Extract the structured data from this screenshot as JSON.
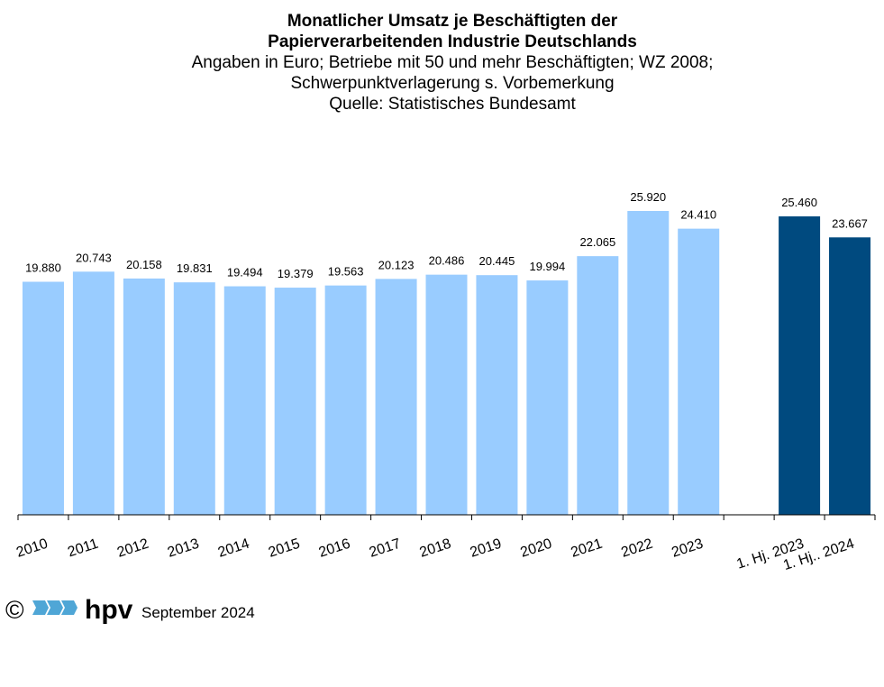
{
  "header": {
    "title_line1": "Monatlicher Umsatz je Beschäftigten der",
    "title_line2": "Papierverarbeitenden Industrie Deutschlands",
    "subtitle_line1": "Angaben  in Euro; Betriebe mit 50 und mehr Beschäftigten; WZ 2008;",
    "subtitle_line2": "Schwerpunktverlagerung  s. Vorbemerkung",
    "subtitle_line3": "Quelle:  Statistisches Bundesamt"
  },
  "footer": {
    "copyright": "©",
    "logo_text": "hpv",
    "date": "September 2024"
  },
  "chart_data": {
    "type": "bar",
    "title": "Monatlicher Umsatz je Beschäftigten der Papierverarbeitenden Industrie Deutschlands",
    "categories": [
      "2010",
      "2011",
      "2012",
      "2013",
      "2014",
      "2015",
      "2016",
      "2017",
      "2018",
      "2019",
      "2020",
      "2021",
      "2022",
      "2023",
      "",
      "1. Hj. 2023",
      "1. Hj.. 2024"
    ],
    "values": [
      19880,
      20743,
      20158,
      19831,
      19494,
      19379,
      19563,
      20123,
      20486,
      20445,
      19994,
      22065,
      25920,
      24410,
      null,
      25460,
      23667
    ],
    "value_labels": [
      "19.880",
      "20.743",
      "20.158",
      "19.831",
      "19.494",
      "19.379",
      "19.563",
      "20.123",
      "20.486",
      "20.445",
      "19.994",
      "22.065",
      "25.920",
      "24.410",
      "",
      "25.460",
      "23.667"
    ],
    "colors": [
      "#99ccff",
      "#99ccff",
      "#99ccff",
      "#99ccff",
      "#99ccff",
      "#99ccff",
      "#99ccff",
      "#99ccff",
      "#99ccff",
      "#99ccff",
      "#99ccff",
      "#99ccff",
      "#99ccff",
      "#99ccff",
      "",
      "#004a7f",
      "#004a7f"
    ],
    "xlabel": "",
    "ylabel": "",
    "ylim": [
      0,
      31000
    ],
    "grid": false,
    "legend": "none"
  }
}
